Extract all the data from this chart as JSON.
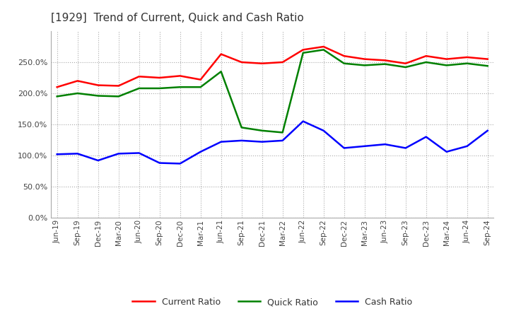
{
  "title": "[1929]  Trend of Current, Quick and Cash Ratio",
  "x_labels": [
    "Jun-19",
    "Sep-19",
    "Dec-19",
    "Mar-20",
    "Jun-20",
    "Sep-20",
    "Dec-20",
    "Mar-21",
    "Jun-21",
    "Sep-21",
    "Dec-21",
    "Mar-22",
    "Jun-22",
    "Sep-22",
    "Dec-22",
    "Mar-23",
    "Jun-23",
    "Sep-23",
    "Dec-23",
    "Mar-24",
    "Jun-24",
    "Sep-24"
  ],
  "current_ratio": [
    210,
    220,
    213,
    212,
    227,
    225,
    228,
    222,
    263,
    250,
    248,
    250,
    270,
    275,
    260,
    255,
    253,
    248,
    260,
    255,
    258,
    255
  ],
  "quick_ratio": [
    195,
    200,
    196,
    195,
    208,
    208,
    210,
    210,
    235,
    145,
    140,
    137,
    265,
    270,
    248,
    245,
    247,
    242,
    250,
    245,
    248,
    244
  ],
  "cash_ratio": [
    102,
    103,
    92,
    103,
    104,
    88,
    87,
    106,
    122,
    124,
    122,
    124,
    155,
    140,
    112,
    115,
    118,
    112,
    130,
    106,
    115,
    140
  ],
  "current_color": "#ff0000",
  "quick_color": "#008000",
  "cash_color": "#0000ff",
  "ylim": [
    0,
    300
  ],
  "yticks": [
    0,
    50,
    100,
    150,
    200,
    250
  ],
  "background_color": "#ffffff",
  "grid_color": "#aaaaaa"
}
